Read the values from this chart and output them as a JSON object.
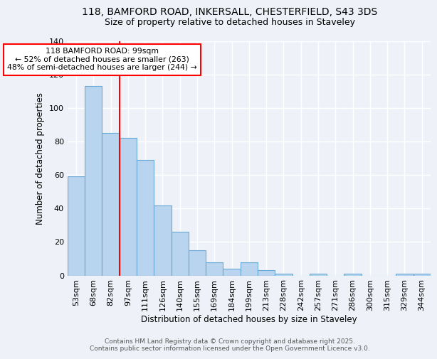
{
  "title_line1": "118, BAMFORD ROAD, INKERSALL, CHESTERFIELD, S43 3DS",
  "title_line2": "Size of property relative to detached houses in Staveley",
  "xlabel": "Distribution of detached houses by size in Staveley",
  "ylabel": "Number of detached properties",
  "bins": [
    "53sqm",
    "68sqm",
    "82sqm",
    "97sqm",
    "111sqm",
    "126sqm",
    "140sqm",
    "155sqm",
    "169sqm",
    "184sqm",
    "199sqm",
    "213sqm",
    "228sqm",
    "242sqm",
    "257sqm",
    "271sqm",
    "286sqm",
    "300sqm",
    "315sqm",
    "329sqm",
    "344sqm"
  ],
  "values": [
    59,
    113,
    85,
    82,
    69,
    42,
    26,
    15,
    8,
    4,
    8,
    3,
    1,
    0,
    1,
    0,
    1,
    0,
    0,
    1,
    1
  ],
  "bar_color": "#b8d4ee",
  "bar_edge_color": "#6aaad4",
  "red_line_index": 3,
  "annotation_line1": "118 BAMFORD ROAD: 99sqm",
  "annotation_line2": "← 52% of detached houses are smaller (263)",
  "annotation_line3": "48% of semi-detached houses are larger (244) →",
  "annotation_box_facecolor": "white",
  "annotation_box_edgecolor": "red",
  "ylim": [
    0,
    140
  ],
  "yticks": [
    0,
    20,
    40,
    60,
    80,
    100,
    120,
    140
  ],
  "footer1": "Contains HM Land Registry data © Crown copyright and database right 2025.",
  "footer2": "Contains public sector information licensed under the Open Government Licence v3.0.",
  "background_color": "#eef2f8",
  "grid_color": "white",
  "title_fontsize": 10,
  "subtitle_fontsize": 9,
  "axis_label_fontsize": 8.5,
  "tick_fontsize": 8,
  "annotation_fontsize": 7.8,
  "footer_fontsize": 6.5
}
